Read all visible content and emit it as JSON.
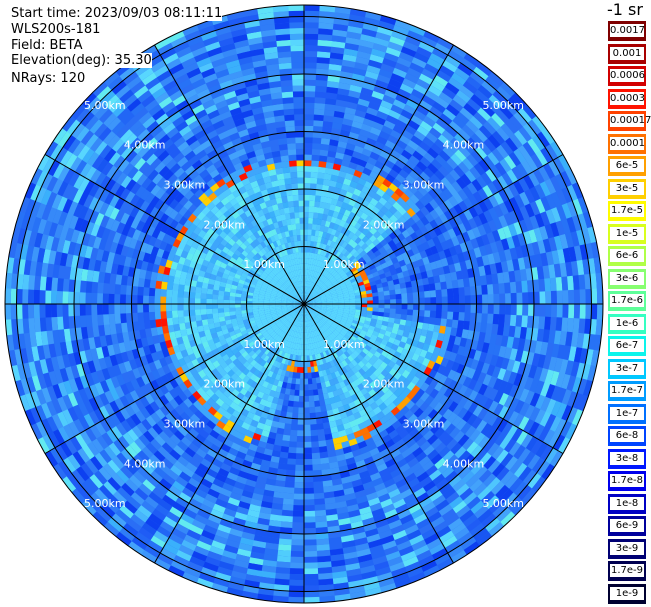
{
  "header": {
    "start_time": "Start time: 2023/09/03 08:11:11",
    "instrument": "WLS200s-181",
    "field": "Field: BETA",
    "elevation": "Elevation(deg): 35.30",
    "nrays": "NRays: 120"
  },
  "legend": {
    "title": "-1 sr",
    "entries": [
      {
        "label": "0.0017",
        "color": "#7f0000"
      },
      {
        "label": "0.001",
        "color": "#a80000"
      },
      {
        "label": "0.0006",
        "color": "#d20000"
      },
      {
        "label": "0.0003",
        "color": "#ff1300"
      },
      {
        "label": "0.00017",
        "color": "#ff4200"
      },
      {
        "label": "0.0001",
        "color": "#ff7100"
      },
      {
        "label": "6e-5",
        "color": "#ffa000"
      },
      {
        "label": "3e-5",
        "color": "#ffcf00"
      },
      {
        "label": "1.7e-5",
        "color": "#fffc00"
      },
      {
        "label": "1e-5",
        "color": "#d9ff1e"
      },
      {
        "label": "6e-6",
        "color": "#b0ff47"
      },
      {
        "label": "3e-6",
        "color": "#87ff70"
      },
      {
        "label": "1.7e-6",
        "color": "#5eff99"
      },
      {
        "label": "1e-6",
        "color": "#35ffc2"
      },
      {
        "label": "6e-7",
        "color": "#0cf4eb"
      },
      {
        "label": "3e-7",
        "color": "#00c8ff"
      },
      {
        "label": "1.7e-7",
        "color": "#009cff"
      },
      {
        "label": "1e-7",
        "color": "#0070ff"
      },
      {
        "label": "6e-8",
        "color": "#0044ff"
      },
      {
        "label": "3e-8",
        "color": "#0018ff"
      },
      {
        "label": "1.7e-8",
        "color": "#0000ec"
      },
      {
        "label": "1e-8",
        "color": "#0000c4"
      },
      {
        "label": "6e-9",
        "color": "#00009c"
      },
      {
        "label": "3e-9",
        "color": "#000074"
      },
      {
        "label": "1.7e-9",
        "color": "#000050"
      },
      {
        "label": "1e-9",
        "color": "#000030"
      }
    ]
  },
  "chart_data": {
    "type": "heatmap",
    "subtype": "polar-ppi",
    "rings": [
      {
        "range_km": 1,
        "label": "1.00km"
      },
      {
        "range_km": 2,
        "label": "2.00km"
      },
      {
        "range_km": 3,
        "label": "3.00km"
      },
      {
        "range_km": 4,
        "label": "4.00km"
      },
      {
        "range_km": 5,
        "label": "5.00km"
      }
    ],
    "max_range_km": 5.2,
    "nrays": 120,
    "spokes_deg": [
      0,
      30,
      60,
      90,
      120,
      150
    ],
    "cloud_ring_km": [
      1.0,
      2.5
    ],
    "cloud_gap_azimuths_deg": [
      [
        52,
        100
      ],
      [
        168,
        195
      ]
    ]
  }
}
